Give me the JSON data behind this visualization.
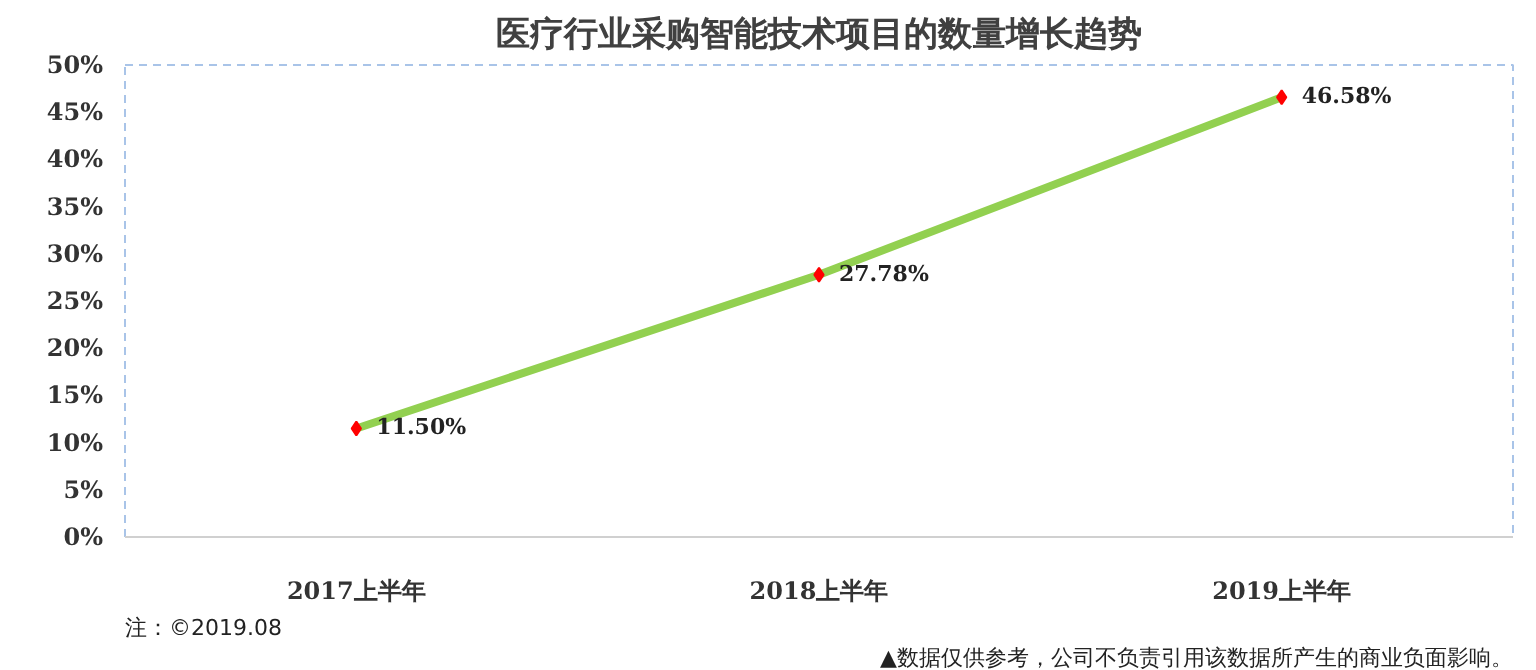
{
  "chart_data": {
    "type": "line",
    "title": "医疗行业采购智能技术项目的数量增长趋势",
    "categories": [
      "2017上半年",
      "2018上半年",
      "2019上半年"
    ],
    "series": [
      {
        "color": "#92d050",
        "values": [
          11.5,
          27.78,
          46.58
        ],
        "value_labels": [
          "11.50%",
          "27.78%",
          "46.58%"
        ],
        "colors": [
          "#ff0000",
          "#ff0000",
          "#ff0000"
        ]
      }
    ],
    "ylim": [
      0,
      50
    ],
    "yticks": [
      {
        "value": 0,
        "label": "0%"
      },
      {
        "value": 5,
        "label": "5%"
      },
      {
        "value": 10,
        "label": "10%"
      },
      {
        "value": 15,
        "label": "15%"
      },
      {
        "value": 20,
        "label": "20%"
      },
      {
        "value": 25,
        "label": "25%"
      },
      {
        "value": 30,
        "label": "30%"
      },
      {
        "value": 35,
        "label": "35%"
      },
      {
        "value": 40,
        "label": "40%"
      },
      {
        "value": 45,
        "label": "45%"
      },
      {
        "value": 50,
        "label": "50%"
      }
    ],
    "grid": false,
    "marker": "diamond",
    "line_style": "solid",
    "annotations": [
      "注：©2019.08",
      "▲数据仅供参考，公司不负责引用该数据所产生的商业负面影响。"
    ]
  }
}
